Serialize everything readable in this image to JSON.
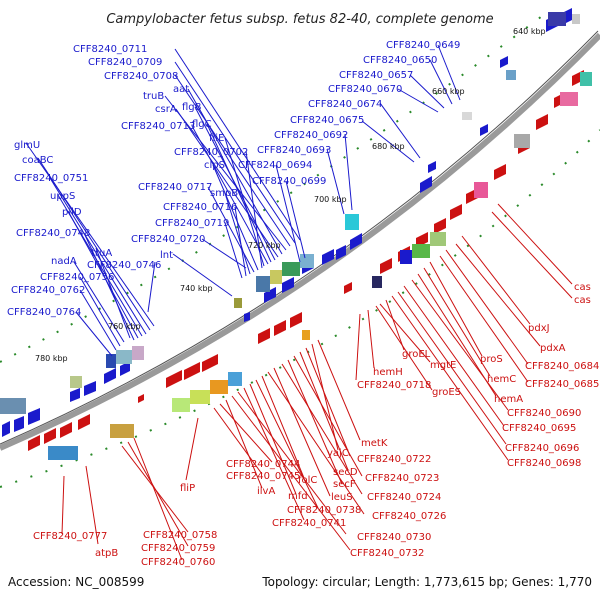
{
  "title": "Campylobacter fetus subsp. fetus 82-40, complete genome",
  "footer": {
    "accession": "Accession: NC_008599",
    "info": "Topology: circular; Length: 1,773,615 bp; Genes: 1,770"
  },
  "ticks": [
    "640 kbp",
    "660 kbp",
    "680 kbp",
    "700 kbp",
    "720 kbp",
    "740 kbp",
    "760 kbp",
    "780 kbp"
  ],
  "colors": {
    "forward": "#1a1acc",
    "reverse": "#cc1111",
    "backbone": "#888888",
    "dots": "#2a8a2a"
  },
  "labels_forward": [
    "CFF8240_0711",
    "CFF8240_0709",
    "CFF8240_0708",
    "truB",
    "aat",
    "csrA",
    "flgB",
    "flgC",
    "CFF8240_0713",
    "fliE",
    "CFF8240_0702",
    "clpS",
    "CFF8240_0694",
    "CFF8240_0699",
    "CFF8240_0717",
    "smpB",
    "CFF8240_0716",
    "CFF8240_0719",
    "CFF8240_0720",
    "lnt",
    "CFF8240_0746",
    "truA",
    "nadA",
    "CFF8240_0756",
    "CFF8240_0762",
    "CFF8240_0764",
    "CFF8240_0748",
    "pilD",
    "uppS",
    "CFF8240_0751",
    "coaBC",
    "glmU",
    "CFF8240_0649",
    "CFF8240_0650",
    "CFF8240_0657",
    "CFF8240_0670",
    "CFF8240_0674",
    "CFF8240_0675",
    "CFF8240_0692",
    "CFF8240_0693"
  ],
  "labels_reverse": [
    "cas",
    "cas",
    "pdxJ",
    "pdxA",
    "CFF8240_0684",
    "CFF8240_0685",
    "proS",
    "hemC",
    "hemA",
    "CFF8240_0690",
    "CFF8240_0695",
    "CFF8240_0696",
    "CFF8240_0698",
    "groEL",
    "mgtE",
    "hemH",
    "CFF8240_0718",
    "groES",
    "metK",
    "yajC",
    "CFF8240_0722",
    "secD",
    "CFF8240_0723",
    "secF",
    "CFF8240_0724",
    "leuS",
    "CFF8240_0726",
    "folC",
    "CFF8240_0738",
    "mfd",
    "CFF8240_0741",
    "CFF8240_0730",
    "CFF8240_0732",
    "ilvA",
    "CFF8240_0744",
    "CFF8240_0745",
    "fliP",
    "CFF8240_0777",
    "atpB",
    "CFF8240_0758",
    "CFF8240_0759",
    "CFF8240_0760"
  ]
}
